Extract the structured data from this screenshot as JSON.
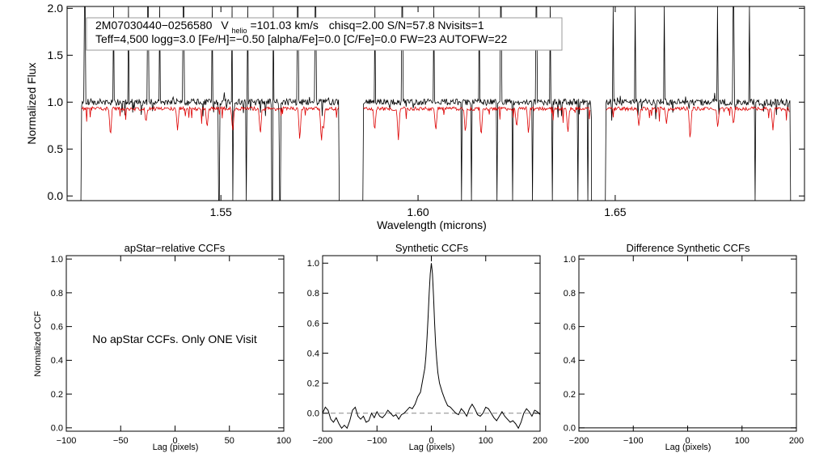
{
  "chart_data": [
    {
      "id": "spectrum",
      "type": "line",
      "xlabel": "Wavelength (microns)",
      "ylabel": "Normalized Flux",
      "xlim": [
        1.511,
        1.698
      ],
      "ylim": [
        -0.05,
        2.02
      ],
      "xticks": [
        1.55,
        1.6,
        1.65
      ],
      "xtick_labels": [
        "1.55",
        "1.60",
        "1.65"
      ],
      "yticks": [
        0.0,
        0.5,
        1.0,
        1.5,
        2.0
      ],
      "ytick_labels": [
        "0.0",
        "0.5",
        "1.0",
        "1.5",
        "2.0"
      ],
      "chips": [
        [
          1.5145,
          1.5802
        ],
        [
          1.586,
          1.644
        ],
        [
          1.6475,
          1.6945
        ]
      ],
      "series": [
        {
          "name": "observed",
          "color": "#000000",
          "continuum": 1.0,
          "noise": 0.035,
          "spikes_up": [
            1.5155,
            1.5228,
            1.5266,
            1.5315,
            1.5345,
            1.5405,
            1.5478,
            1.5528,
            1.5568,
            1.5632,
            1.5695,
            1.574,
            1.589,
            1.596,
            1.604,
            1.6155,
            1.621,
            1.63,
            1.6335,
            1.6405,
            1.6495,
            1.655,
            1.6625,
            1.676,
            1.68,
            1.684
          ],
          "spikes_down": [
            1.5145,
            1.5495,
            1.553,
            1.5565,
            1.563,
            1.565,
            1.58,
            1.586,
            1.611,
            1.6135,
            1.62,
            1.624,
            1.629,
            1.634,
            1.6405,
            1.643,
            1.6475,
            1.6855,
            1.6945
          ]
        },
        {
          "name": "synthetic",
          "color": "#dd0000",
          "continuum": 0.93,
          "dips": [
            [
              1.522,
              0.62
            ],
            [
              1.531,
              0.78
            ],
            [
              1.539,
              0.7
            ],
            [
              1.5465,
              0.72
            ],
            [
              1.553,
              0.68
            ],
            [
              1.56,
              0.64
            ],
            [
              1.57,
              0.58
            ],
            [
              1.5755,
              0.56
            ],
            [
              1.576,
              0.68
            ],
            [
              1.589,
              0.68
            ],
            [
              1.595,
              0.58
            ],
            [
              1.6045,
              0.68
            ],
            [
              1.612,
              0.66
            ],
            [
              1.616,
              0.62
            ],
            [
              1.625,
              0.72
            ],
            [
              1.628,
              0.65
            ],
            [
              1.638,
              0.66
            ],
            [
              1.656,
              0.74
            ],
            [
              1.663,
              0.77
            ],
            [
              1.669,
              0.58
            ],
            [
              1.676,
              0.72
            ],
            [
              1.68,
              0.75
            ],
            [
              1.69,
              0.7
            ]
          ]
        }
      ],
      "annotation": {
        "line1_name": "2M07030440−0256580",
        "v_label": "V",
        "v_sub": "helio",
        "v_value": "=101.03 km/s",
        "line1_rest": "chisq=2.00  S/N=57.8  Nvisits=1",
        "line2": "Teff=4,500 logg=3.0 [Fe/H]=−0.50 [alpha/Fe]=0.0 [C/Fe]=0.0 FW=23 AUTOFW=22"
      }
    },
    {
      "id": "apstar",
      "type": "line",
      "title": "apStar−relative CCFs",
      "xlabel": "Lag (pixels)",
      "ylabel": "Normalized CCF",
      "xlim": [
        -100,
        100
      ],
      "ylim": [
        -0.02,
        1.02
      ],
      "xticks": [
        -100,
        -50,
        0,
        50,
        100
      ],
      "xtick_labels": [
        "−100",
        "−50",
        "0",
        "50",
        "100"
      ],
      "yticks": [
        0.0,
        0.2,
        0.4,
        0.6,
        0.8,
        1.0
      ],
      "ytick_labels": [
        "0.0",
        "0.2",
        "0.4",
        "0.6",
        "0.8",
        "1.0"
      ],
      "message": "No apStar CCFs.  Only ONE Visit",
      "series": []
    },
    {
      "id": "synthetic",
      "type": "line",
      "title": "Synthetic CCFs",
      "xlabel": "Lag (pixels)",
      "ylabel": "",
      "xlim": [
        -200,
        200
      ],
      "ylim": [
        -0.12,
        1.05
      ],
      "xticks": [
        -200,
        -100,
        0,
        100,
        200
      ],
      "xtick_labels": [
        "−200",
        "−100",
        "0",
        "100",
        "200"
      ],
      "yticks": [
        0.0,
        0.2,
        0.4,
        0.6,
        0.8,
        1.0
      ],
      "ytick_labels": [
        "0.0",
        "0.2",
        "0.4",
        "0.6",
        "0.8",
        "1.0"
      ],
      "zero_line": 0.0,
      "series": [
        {
          "name": "ccf",
          "color": "#000000",
          "x": [
            -200,
            -195,
            -190,
            -185,
            -180,
            -175,
            -170,
            -165,
            -160,
            -155,
            -150,
            -145,
            -140,
            -135,
            -130,
            -125,
            -120,
            -115,
            -110,
            -105,
            -100,
            -95,
            -90,
            -85,
            -80,
            -75,
            -70,
            -65,
            -60,
            -55,
            -50,
            -45,
            -40,
            -35,
            -30,
            -25,
            -20,
            -15,
            -12,
            -10,
            -8,
            -6,
            -4,
            -2,
            0,
            2,
            4,
            6,
            8,
            10,
            12,
            15,
            20,
            25,
            30,
            35,
            40,
            45,
            50,
            55,
            60,
            65,
            70,
            75,
            80,
            85,
            90,
            95,
            100,
            105,
            110,
            115,
            120,
            125,
            130,
            135,
            140,
            145,
            150,
            155,
            160,
            165,
            170,
            175,
            180,
            185,
            190,
            195,
            200
          ],
          "y": [
            0.0,
            0.04,
            0.02,
            -0.04,
            -0.06,
            -0.03,
            -0.07,
            -0.1,
            -0.08,
            -0.1,
            -0.05,
            0.02,
            0.04,
            -0.02,
            -0.04,
            -0.02,
            -0.06,
            -0.05,
            0.0,
            -0.03,
            0.01,
            -0.02,
            -0.03,
            -0.01,
            0.02,
            0.0,
            -0.02,
            -0.01,
            -0.04,
            -0.01,
            0.0,
            0.02,
            0.04,
            0.03,
            0.06,
            0.11,
            0.14,
            0.24,
            0.3,
            0.38,
            0.5,
            0.64,
            0.8,
            0.93,
            1.0,
            0.93,
            0.78,
            0.6,
            0.45,
            0.35,
            0.27,
            0.2,
            0.14,
            0.09,
            0.05,
            0.04,
            0.02,
            0.0,
            -0.01,
            0.03,
            0.01,
            -0.02,
            0.03,
            0.06,
            0.03,
            -0.01,
            -0.02,
            0.0,
            0.04,
            0.03,
            0.0,
            -0.03,
            -0.05,
            -0.02,
            0.01,
            -0.02,
            -0.04,
            -0.06,
            -0.05,
            -0.07,
            -0.1,
            -0.06,
            0.0,
            0.03,
            0.01,
            -0.02,
            0.02,
            0.01,
            -0.01
          ]
        }
      ]
    },
    {
      "id": "difference",
      "type": "line",
      "title": "Difference Synthetic CCFs",
      "xlabel": "Lag (pixels)",
      "ylabel": "",
      "xlim": [
        -200,
        200
      ],
      "ylim": [
        -0.02,
        1.02
      ],
      "xticks": [
        -200,
        -100,
        0,
        100,
        200
      ],
      "xtick_labels": [
        "−200",
        "−100",
        "0",
        "100",
        "200"
      ],
      "yticks": [
        0.0,
        0.2,
        0.4,
        0.6,
        0.8,
        1.0
      ],
      "ytick_labels": [
        "0.0",
        "0.2",
        "0.4",
        "0.6",
        "0.8",
        "1.0"
      ],
      "series": [
        {
          "name": "difference",
          "color": "#000000",
          "x": [
            -200,
            200
          ],
          "y": [
            0.0,
            0.0
          ]
        }
      ]
    }
  ]
}
